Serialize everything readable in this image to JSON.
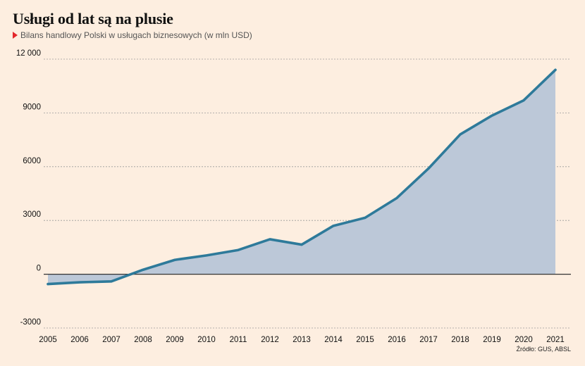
{
  "title": "Usługi od lat są na plusie",
  "subtitle": "Bilans handlowy Polski w usługach biznesowych (w mln USD)",
  "source": "Źródło: GUS, ABSL",
  "colors": {
    "background": "#fdeee0",
    "line": "#2e7a9a",
    "area": "#bcc8d8",
    "grid": "#9a9a9a",
    "zero_line": "#333333",
    "marker": "#e3262b"
  },
  "chart_data": {
    "type": "area",
    "x": [
      "2005",
      "2006",
      "2007",
      "2008",
      "2009",
      "2010",
      "2011",
      "2012",
      "2013",
      "2014",
      "2015",
      "2016",
      "2017",
      "2018",
      "2019",
      "2020",
      "2021"
    ],
    "series": [
      {
        "values": [
          -550,
          -450,
          -400,
          250,
          800,
          1050,
          1350,
          1950,
          1650,
          2700,
          3150,
          4250,
          5900,
          7800,
          8850,
          9700,
          11400
        ]
      }
    ],
    "yticks": [
      -3000,
      0,
      3000,
      6000,
      9000,
      12000
    ],
    "ytick_labels": [
      "-3000",
      "0",
      "3000",
      "6000",
      "9000",
      "12 000"
    ],
    "ylim": [
      -3000,
      12000
    ],
    "grid": "horizontal-dashed",
    "legend": "none"
  }
}
